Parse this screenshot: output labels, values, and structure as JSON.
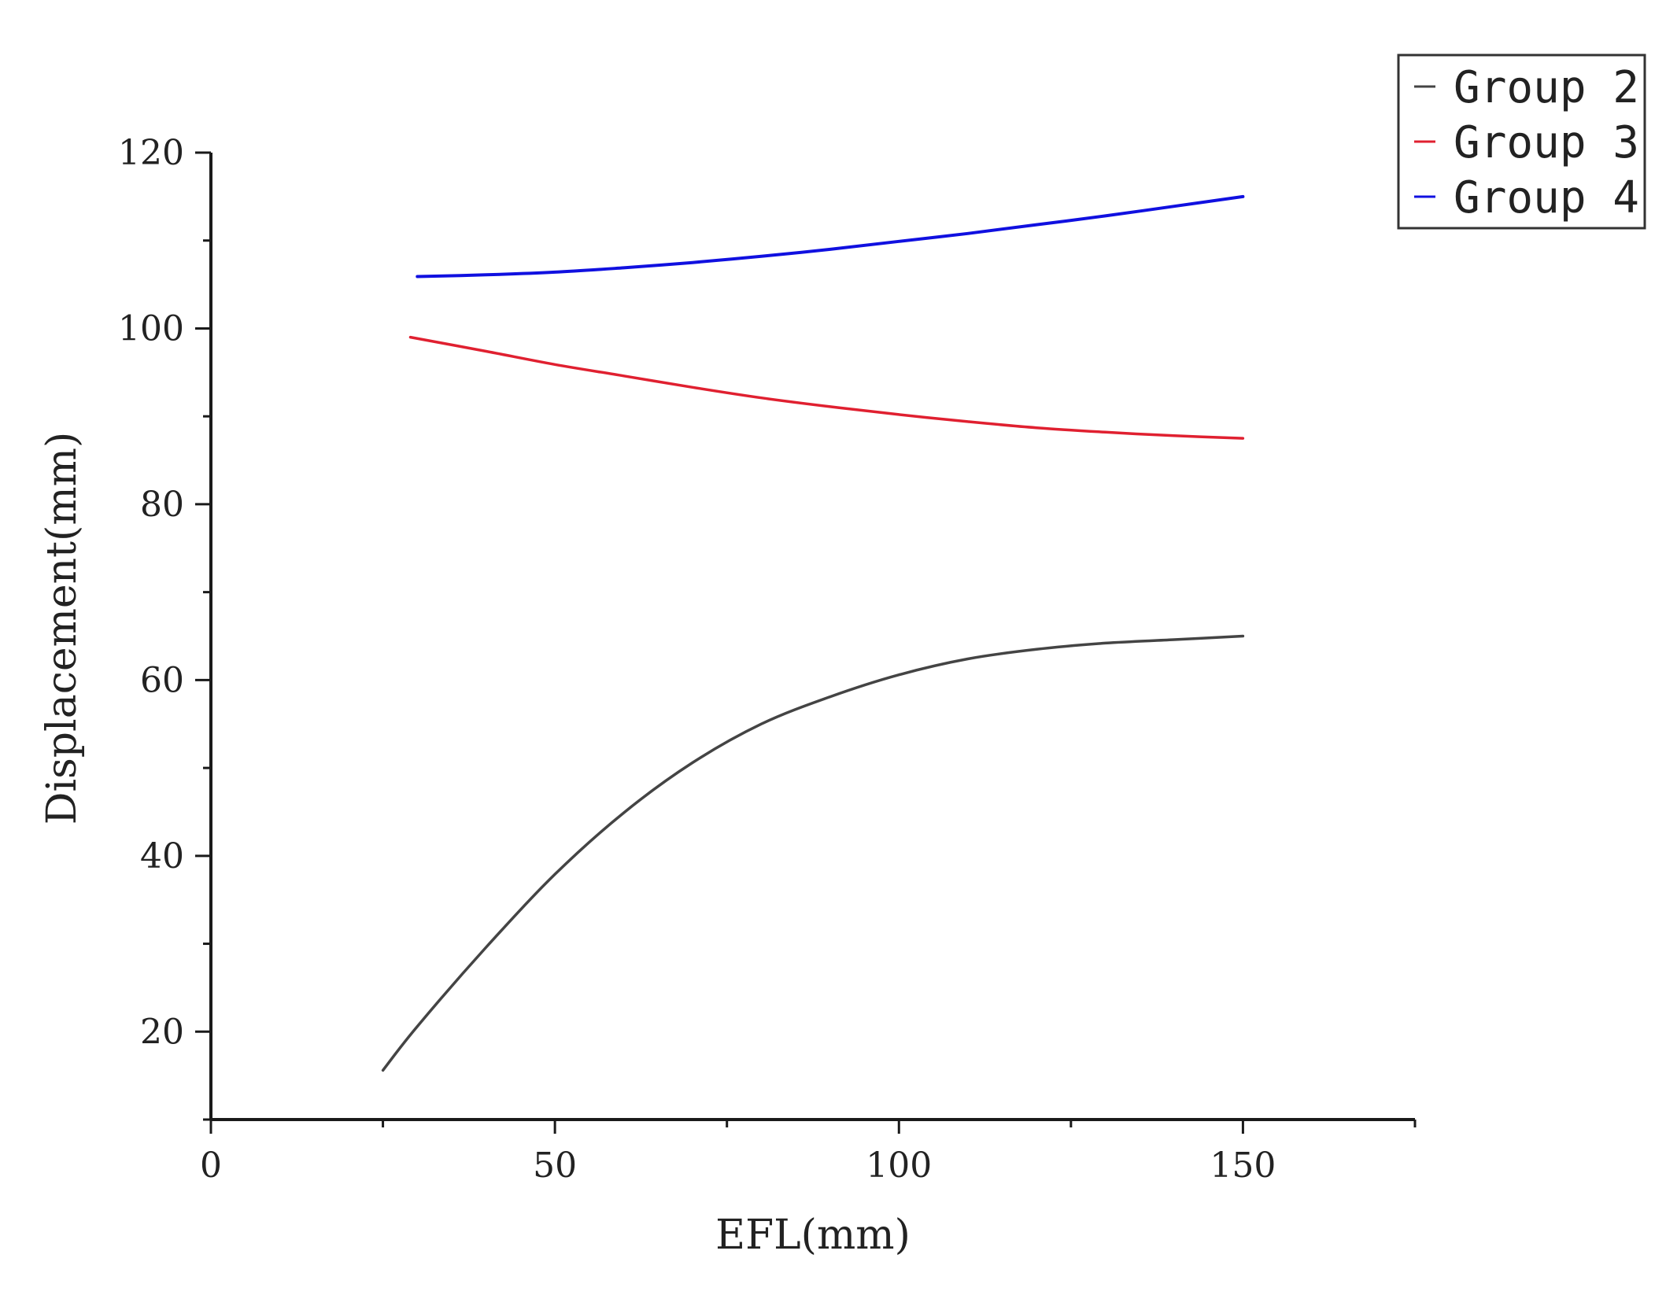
{
  "chart_data": {
    "type": "line",
    "title": "",
    "xlabel": "EFL(mm)",
    "ylabel": "Displacement(mm)",
    "xlim": [
      0,
      175
    ],
    "ylim": [
      10,
      120
    ],
    "x_ticks": [
      0,
      50,
      100,
      150
    ],
    "y_ticks": [
      20,
      40,
      60,
      80,
      100,
      120
    ],
    "grid": false,
    "legend_position": "top-right",
    "series": [
      {
        "name": "Group 2",
        "color": "#444444",
        "x": [
          25,
          30,
          40,
          50,
          60,
          70,
          80,
          90,
          100,
          110,
          120,
          130,
          140,
          150
        ],
        "values": [
          15.6,
          20.6,
          29.6,
          37.9,
          44.9,
          50.6,
          55.0,
          58.1,
          60.6,
          62.4,
          63.5,
          64.2,
          64.6,
          65.0
        ]
      },
      {
        "name": "Group 3",
        "color": "#e02030",
        "x": [
          29,
          40,
          50,
          60,
          70,
          80,
          90,
          100,
          110,
          120,
          130,
          140,
          150
        ],
        "values": [
          99.0,
          97.4,
          95.9,
          94.6,
          93.3,
          92.1,
          91.1,
          90.2,
          89.4,
          88.7,
          88.2,
          87.8,
          87.5
        ]
      },
      {
        "name": "Group 4",
        "color": "#1010e0",
        "x": [
          30,
          40,
          50,
          60,
          70,
          80,
          90,
          100,
          110,
          120,
          130,
          140,
          150
        ],
        "values": [
          105.9,
          106.1,
          106.4,
          106.9,
          107.5,
          108.2,
          109.0,
          109.9,
          110.8,
          111.8,
          112.8,
          113.9,
          115.0
        ]
      }
    ]
  }
}
